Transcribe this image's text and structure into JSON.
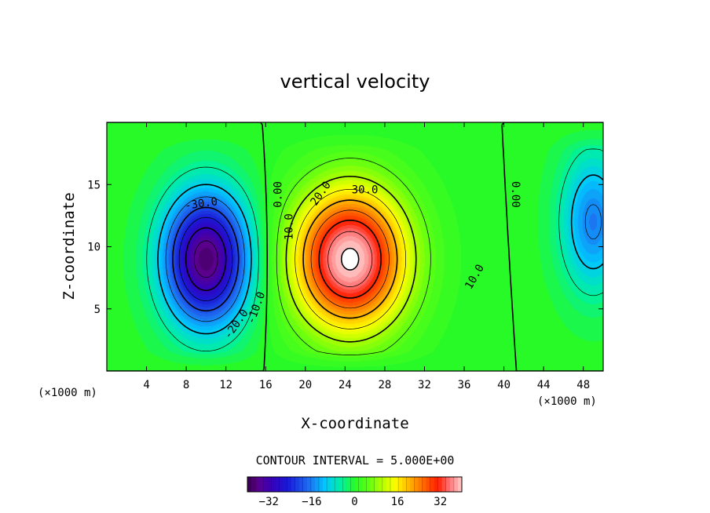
{
  "chart_data": {
    "type": "heatmap",
    "title": "vertical velocity",
    "xlabel": "X-coordinate",
    "ylabel": "Z-coordinate",
    "x_unit": "(×1000 m)",
    "xlim": [
      0,
      50
    ],
    "ylim": [
      0,
      20
    ],
    "x_ticks": [
      4,
      8,
      12,
      16,
      20,
      24,
      28,
      32,
      36,
      40,
      44,
      48
    ],
    "y_ticks": [
      5,
      10,
      15
    ],
    "contour_interval_label": "CONTOUR INTERVAL = 5.000E+00",
    "contour_interval": 5,
    "color_range": [
      -40,
      40
    ],
    "colorbar_ticks": [
      "−32",
      "−16",
      "0",
      "16",
      "32"
    ],
    "colorbar_tick_values": [
      -32,
      -16,
      0,
      16,
      32
    ],
    "field_features": [
      {
        "kind": "downdraft",
        "center_x": 10,
        "center_z": 9,
        "min_value": -38
      },
      {
        "kind": "updraft",
        "center_x": 24.5,
        "center_z": 9,
        "max_value": 41
      },
      {
        "kind": "weak_downdraft",
        "center_x": 49,
        "center_z": 12,
        "min_value": -16
      }
    ],
    "contour_labels": [
      {
        "text": "-30.0",
        "x": 9.5,
        "z": 13.5,
        "angle": -8
      },
      {
        "text": "-20.0",
        "x": 13.0,
        "z": 3.8,
        "angle": -55
      },
      {
        "text": "-10.0",
        "x": 15.0,
        "z": 5.1,
        "angle": -70
      },
      {
        "text": "0.00",
        "x": 17.2,
        "z": 14.2,
        "angle": -90
      },
      {
        "text": "10.0",
        "x": 18.3,
        "z": 11.6,
        "angle": -90
      },
      {
        "text": "20.0",
        "x": 21.5,
        "z": 14.3,
        "angle": -55
      },
      {
        "text": "30.0",
        "x": 26.0,
        "z": 14.6,
        "angle": 0
      },
      {
        "text": "10.0",
        "x": 37.0,
        "z": 7.6,
        "angle": -60
      },
      {
        "text": "0.00",
        "x": 41.2,
        "z": 14.2,
        "angle": 90
      }
    ]
  }
}
